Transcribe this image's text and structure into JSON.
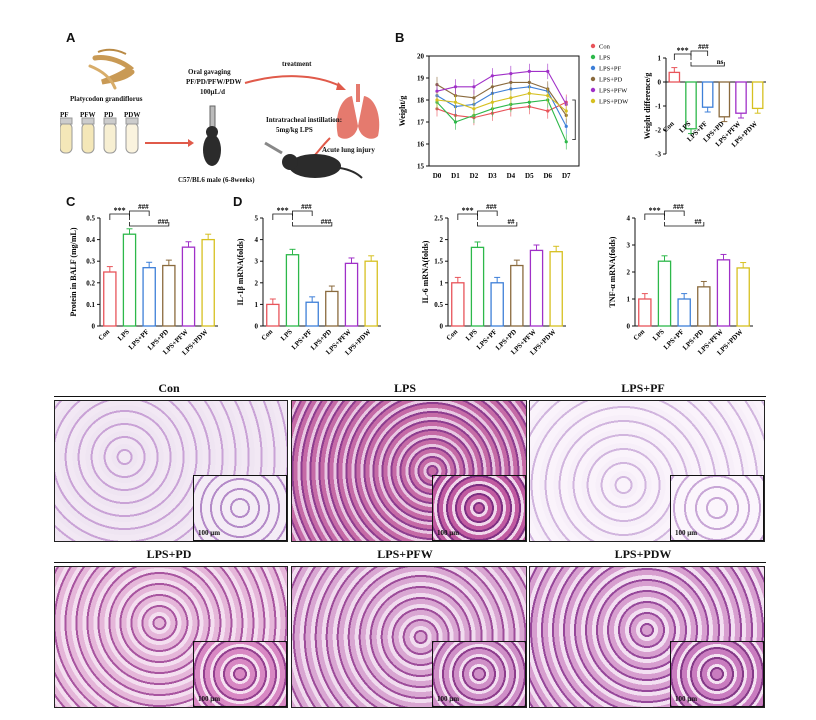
{
  "panels": {
    "a": "A",
    "b": "B",
    "c": "C",
    "d": "D"
  },
  "schematic": {
    "plant": "Platycodon grandiflorus",
    "tubes": [
      "PF",
      "PFW",
      "PD",
      "PDW"
    ],
    "gavage_title": "Oral gavaging",
    "gavage_groups": "PF/PD/PFW/PDW",
    "gavage_dose": "100μL/d",
    "mouse": "C57/BL6 male  (6-8weeks)",
    "treatment": "treatment",
    "instill_title": "Intratracheal instillation:",
    "instill_dose": "5mg/kg LPS",
    "injury": "Acute lung injury"
  },
  "chart_data": [
    {
      "id": "weight",
      "type": "line",
      "title": "",
      "xlabel": "",
      "ylabel": "Weight/g",
      "categories": [
        "D0",
        "D1",
        "D2",
        "D3",
        "D4",
        "D5",
        "D6",
        "D7"
      ],
      "ylim": [
        15,
        20
      ],
      "yticks": [
        15,
        16,
        17,
        18,
        19,
        20
      ],
      "series": [
        {
          "name": "Con",
          "color": "#e8545a",
          "values": [
            17.6,
            17.3,
            17.2,
            17.4,
            17.6,
            17.7,
            17.5,
            17.9
          ]
        },
        {
          "name": "LPS",
          "color": "#2db84a",
          "values": [
            17.9,
            17.0,
            17.3,
            17.6,
            17.8,
            17.9,
            18.0,
            16.1
          ]
        },
        {
          "name": "LPS+PF",
          "color": "#3d7fd8",
          "values": [
            18.2,
            17.7,
            17.8,
            18.3,
            18.5,
            18.6,
            18.4,
            16.8
          ]
        },
        {
          "name": "LPS+PD",
          "color": "#8a6a3d",
          "values": [
            18.7,
            18.2,
            18.1,
            18.6,
            18.8,
            18.8,
            18.5,
            17.3
          ]
        },
        {
          "name": "LPS+PFW",
          "color": "#a030c8",
          "values": [
            18.4,
            18.6,
            18.6,
            19.1,
            19.2,
            19.3,
            19.3,
            17.8
          ]
        },
        {
          "name": "LPS+PDW",
          "color": "#d6c020",
          "values": [
            18.0,
            17.9,
            17.6,
            17.9,
            18.1,
            18.3,
            18.2,
            17.5
          ]
        }
      ]
    },
    {
      "id": "weight_diff",
      "type": "bar",
      "ylabel": "Weight difference/g",
      "categories": [
        "Con",
        "LPS",
        "LPS+PF",
        "LPS+PD",
        "LPS+PFW",
        "LPS+PDW"
      ],
      "values": [
        0.4,
        -1.95,
        -1.05,
        -1.45,
        -1.3,
        -1.1
      ],
      "colors": [
        "#e8545a",
        "#2db84a",
        "#3d7fd8",
        "#8a6a3d",
        "#a030c8",
        "#d6c020"
      ],
      "ylim": [
        -3,
        1
      ],
      "yticks": [
        1,
        0,
        -1,
        -2,
        -3
      ],
      "annotations": [
        "***",
        "###",
        "ns"
      ]
    },
    {
      "id": "protein",
      "type": "bar",
      "ylabel": "Protein in BALF (mg/mL)",
      "categories": [
        "Con",
        "LPS",
        "LPS+PF",
        "LPS+PD",
        "LPS+PFW",
        "LPS+PDW"
      ],
      "values": [
        0.25,
        0.425,
        0.27,
        0.28,
        0.365,
        0.4
      ],
      "colors": [
        "#e8545a",
        "#2db84a",
        "#3d7fd8",
        "#8a6a3d",
        "#a030c8",
        "#d6c020"
      ],
      "ylim": [
        0,
        0.5
      ],
      "yticks": [
        0.0,
        0.1,
        0.2,
        0.3,
        0.4,
        0.5
      ],
      "annotations": [
        "***",
        "###",
        "###"
      ]
    },
    {
      "id": "il1b",
      "type": "bar",
      "ylabel": "IL-1β mRNA(folds)",
      "categories": [
        "Con",
        "LPS",
        "LPS+PF",
        "LPS+PD",
        "LPS+PFW",
        "LPS+PDW"
      ],
      "values": [
        1.0,
        3.3,
        1.1,
        1.6,
        2.9,
        3.0
      ],
      "colors": [
        "#e8545a",
        "#2db84a",
        "#3d7fd8",
        "#8a6a3d",
        "#a030c8",
        "#d6c020"
      ],
      "ylim": [
        0,
        5
      ],
      "yticks": [
        0,
        1,
        2,
        3,
        4,
        5
      ],
      "annotations": [
        "***",
        "###",
        "###"
      ]
    },
    {
      "id": "il6",
      "type": "bar",
      "ylabel": "IL-6 mRNA(folds)",
      "categories": [
        "Con",
        "LPS",
        "LPS+PF",
        "LPS+PD",
        "LPS+PFW",
        "LPS+PDW"
      ],
      "values": [
        1.0,
        1.82,
        1.0,
        1.4,
        1.75,
        1.72
      ],
      "colors": [
        "#e8545a",
        "#2db84a",
        "#3d7fd8",
        "#8a6a3d",
        "#a030c8",
        "#d6c020"
      ],
      "ylim": [
        0,
        2.5
      ],
      "yticks": [
        0.0,
        0.5,
        1.0,
        1.5,
        2.0,
        2.5
      ],
      "annotations": [
        "***",
        "###",
        "##"
      ]
    },
    {
      "id": "tnfa",
      "type": "bar",
      "ylabel": "TNF-α mRNA(folds)",
      "categories": [
        "Con",
        "LPS",
        "LPS+PF",
        "LPS+PD",
        "LPS+PFW",
        "LPS+PDW"
      ],
      "values": [
        1.0,
        2.4,
        1.0,
        1.45,
        2.45,
        2.15
      ],
      "colors": [
        "#e8545a",
        "#2db84a",
        "#3d7fd8",
        "#8a6a3d",
        "#a030c8",
        "#d6c020"
      ],
      "ylim": [
        0,
        4
      ],
      "yticks": [
        0,
        1,
        2,
        3,
        4
      ],
      "annotations": [
        "***",
        "###",
        "##"
      ]
    }
  ],
  "histology": {
    "titles": [
      "Con",
      "LPS",
      "LPS+PF",
      "LPS+PD",
      "LPS+PFW",
      "LPS+PDW"
    ],
    "scale": "100 μm"
  }
}
